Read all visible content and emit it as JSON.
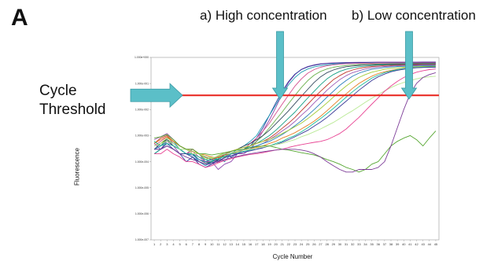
{
  "figure": {
    "panel_letter": "A",
    "annotation_high": "a) High concentration",
    "annotation_low": "b) Low concentration",
    "threshold_label_line1": "Cycle",
    "threshold_label_line2": "Threshold"
  },
  "colors": {
    "threshold_line": "#e8211a",
    "arrow": "#5bbfc8",
    "arrow_stroke": "#3a9aa3",
    "frame": "#999999"
  },
  "chart_data": {
    "type": "line",
    "xlabel": "Cycle Number",
    "ylabel": "Fluorescence",
    "x": [
      1,
      2,
      3,
      4,
      5,
      6,
      7,
      8,
      9,
      10,
      11,
      12,
      13,
      14,
      15,
      16,
      17,
      18,
      19,
      20,
      21,
      22,
      23,
      24,
      25,
      26,
      27,
      28,
      29,
      30,
      31,
      32,
      33,
      34,
      35,
      36,
      37,
      38,
      39,
      40,
      41,
      42,
      43,
      44,
      45
    ],
    "xlim": [
      0.5,
      45.5
    ],
    "y_scale": "log",
    "ylim": [
      1e-07,
      1.0
    ],
    "y_ticks": [
      {
        "value": 1.0,
        "label": "1.000e+000"
      },
      {
        "value": 0.1,
        "label": "1.000e-001"
      },
      {
        "value": 0.01,
        "label": "1.000e-002"
      },
      {
        "value": 0.001,
        "label": "1.000e-003"
      },
      {
        "value": 0.0001,
        "label": "1.000e-004"
      },
      {
        "value": 1e-05,
        "label": "1.000e-005"
      },
      {
        "value": 1e-06,
        "label": "1.000e-006"
      },
      {
        "value": 1e-07,
        "label": "1.000e-007"
      }
    ],
    "threshold": 0.035,
    "grid": false,
    "series": [
      {
        "color": "#8e44ad",
        "values": [
          0.0005,
          0.0003,
          0.0006,
          0.0004,
          0.0002,
          0.0002,
          0.0003,
          0.0002,
          0.0001,
          0.0001,
          5e-05,
          8e-05,
          0.0001,
          0.0002,
          0.0002,
          0.0003,
          0.0006,
          0.0015,
          0.004,
          0.012,
          0.04,
          0.11,
          0.22,
          0.35,
          0.45,
          0.52,
          0.57,
          0.6,
          0.62,
          0.63,
          0.64,
          0.645,
          0.65,
          0.65,
          0.655,
          0.66,
          0.66,
          0.66,
          0.66,
          0.665,
          0.665,
          0.665,
          0.67,
          0.67,
          0.67
        ]
      },
      {
        "color": "#2c3e9e",
        "values": [
          0.0002,
          0.0003,
          0.0005,
          0.0003,
          0.0002,
          0.0001,
          0.00015,
          8e-05,
          6e-05,
          8e-05,
          0.00012,
          0.0002,
          0.00015,
          0.0002,
          0.0003,
          0.0004,
          0.0008,
          0.002,
          0.006,
          0.018,
          0.05,
          0.12,
          0.23,
          0.34,
          0.43,
          0.5,
          0.55,
          0.58,
          0.6,
          0.61,
          0.62,
          0.62,
          0.63,
          0.63,
          0.63,
          0.64,
          0.64,
          0.64,
          0.64,
          0.64,
          0.645,
          0.645,
          0.65,
          0.65,
          0.65
        ]
      },
      {
        "color": "#1f9bb5",
        "values": [
          0.0003,
          0.0004,
          0.0008,
          0.0006,
          0.0003,
          0.0002,
          0.0002,
          0.0001,
          7e-05,
          0.0001,
          0.00015,
          0.0001,
          0.0002,
          0.0003,
          0.0004,
          0.0006,
          0.001,
          0.0025,
          0.006,
          0.015,
          0.04,
          0.09,
          0.17,
          0.27,
          0.36,
          0.43,
          0.48,
          0.52,
          0.55,
          0.57,
          0.58,
          0.59,
          0.6,
          0.6,
          0.61,
          0.61,
          0.61,
          0.62,
          0.62,
          0.62,
          0.62,
          0.62,
          0.62,
          0.62,
          0.62
        ]
      },
      {
        "color": "#d4508f",
        "values": [
          0.0004,
          0.0006,
          0.0009,
          0.0005,
          0.0003,
          0.0002,
          0.00025,
          0.00015,
          0.0001,
          0.00012,
          9e-05,
          0.00015,
          0.0002,
          0.0002,
          0.0003,
          0.0005,
          0.0008,
          0.0015,
          0.003,
          0.007,
          0.016,
          0.036,
          0.08,
          0.15,
          0.25,
          0.34,
          0.42,
          0.48,
          0.52,
          0.55,
          0.57,
          0.58,
          0.59,
          0.6,
          0.6,
          0.61,
          0.61,
          0.61,
          0.61,
          0.62,
          0.62,
          0.62,
          0.62,
          0.62,
          0.62
        ]
      },
      {
        "color": "#6ab04c",
        "values": [
          0.0006,
          0.0004,
          0.0007,
          0.0005,
          0.0003,
          0.0003,
          0.0002,
          0.0002,
          0.00012,
          0.00015,
          0.0001,
          0.00015,
          0.0002,
          0.00025,
          0.0003,
          0.0004,
          0.0006,
          0.001,
          0.002,
          0.004,
          0.008,
          0.017,
          0.035,
          0.07,
          0.13,
          0.21,
          0.29,
          0.36,
          0.42,
          0.46,
          0.49,
          0.51,
          0.53,
          0.54,
          0.55,
          0.56,
          0.56,
          0.57,
          0.57,
          0.57,
          0.58,
          0.58,
          0.58,
          0.58,
          0.58
        ]
      },
      {
        "color": "#34495e",
        "values": [
          0.0003,
          0.0005,
          0.0007,
          0.0004,
          0.0003,
          0.0002,
          0.0002,
          0.00012,
          9e-05,
          0.0001,
          0.00012,
          0.00018,
          0.00025,
          0.0003,
          0.0004,
          0.0005,
          0.0007,
          0.001,
          0.0016,
          0.0028,
          0.005,
          0.009,
          0.017,
          0.032,
          0.06,
          0.11,
          0.18,
          0.26,
          0.33,
          0.39,
          0.44,
          0.47,
          0.5,
          0.52,
          0.53,
          0.54,
          0.55,
          0.55,
          0.56,
          0.56,
          0.56,
          0.57,
          0.57,
          0.57,
          0.57
        ]
      },
      {
        "color": "#16a085",
        "values": [
          0.0002,
          0.0003,
          0.0004,
          0.0003,
          0.0002,
          0.0002,
          0.00015,
          0.0001,
          8e-05,
          0.0001,
          0.00013,
          0.00016,
          0.0002,
          0.00025,
          0.0003,
          0.0004,
          0.0005,
          0.0007,
          0.001,
          0.0016,
          0.0027,
          0.0047,
          0.008,
          0.015,
          0.028,
          0.05,
          0.09,
          0.15,
          0.22,
          0.29,
          0.35,
          0.4,
          0.44,
          0.47,
          0.49,
          0.51,
          0.52,
          0.53,
          0.53,
          0.54,
          0.54,
          0.54,
          0.55,
          0.55,
          0.55
        ]
      },
      {
        "color": "#c0392b",
        "values": [
          0.0005,
          0.0008,
          0.001,
          0.0006,
          0.0004,
          0.0003,
          0.0002,
          0.0002,
          0.00015,
          0.00012,
          0.00015,
          0.0002,
          0.00025,
          0.0003,
          0.00035,
          0.0004,
          0.0005,
          0.0006,
          0.0008,
          0.0012,
          0.0019,
          0.003,
          0.005,
          0.009,
          0.016,
          0.029,
          0.05,
          0.085,
          0.14,
          0.2,
          0.27,
          0.33,
          0.38,
          0.42,
          0.45,
          0.47,
          0.49,
          0.5,
          0.51,
          0.52,
          0.52,
          0.53,
          0.53,
          0.53,
          0.53
        ]
      },
      {
        "color": "#9b59b6",
        "values": [
          0.0007,
          0.0009,
          0.0012,
          0.0007,
          0.0004,
          0.0003,
          0.0003,
          0.0002,
          0.00015,
          0.00012,
          0.0001,
          0.00014,
          0.0002,
          0.0002,
          0.0003,
          0.0003,
          0.0004,
          0.0005,
          0.0007,
          0.001,
          0.0015,
          0.0022,
          0.0035,
          0.006,
          0.01,
          0.018,
          0.031,
          0.055,
          0.09,
          0.14,
          0.2,
          0.26,
          0.31,
          0.36,
          0.4,
          0.43,
          0.45,
          0.47,
          0.48,
          0.49,
          0.5,
          0.5,
          0.51,
          0.51,
          0.51
        ]
      },
      {
        "color": "#2980b9",
        "values": [
          0.0003,
          0.0004,
          0.0006,
          0.0005,
          0.0003,
          0.0002,
          0.00018,
          0.00012,
          0.0001,
          0.00013,
          0.00016,
          0.0002,
          0.00022,
          0.00025,
          0.0003,
          0.00035,
          0.0004,
          0.0005,
          0.0006,
          0.0008,
          0.0011,
          0.0016,
          0.0024,
          0.0037,
          0.006,
          0.01,
          0.017,
          0.03,
          0.05,
          0.085,
          0.13,
          0.19,
          0.25,
          0.3,
          0.35,
          0.38,
          0.41,
          0.43,
          0.45,
          0.46,
          0.47,
          0.47,
          0.48,
          0.48,
          0.48
        ]
      },
      {
        "color": "#a3cb38",
        "values": [
          0.0004,
          0.0005,
          0.0008,
          0.0006,
          0.0004,
          0.0003,
          0.00025,
          0.0002,
          0.00014,
          0.00013,
          0.00017,
          0.00022,
          0.00025,
          0.0003,
          0.00035,
          0.0004,
          0.0005,
          0.0006,
          0.0007,
          0.0009,
          0.0012,
          0.0016,
          0.0022,
          0.003,
          0.0045,
          0.007,
          0.011,
          0.018,
          0.03,
          0.05,
          0.08,
          0.12,
          0.17,
          0.22,
          0.27,
          0.31,
          0.35,
          0.38,
          0.4,
          0.42,
          0.43,
          0.44,
          0.45,
          0.45,
          0.46
        ]
      },
      {
        "color": "#e67e22",
        "values": [
          0.0005,
          0.0007,
          0.0009,
          0.0006,
          0.0004,
          0.0003,
          0.0003,
          0.0002,
          0.00018,
          0.00015,
          0.00014,
          0.00018,
          0.0002,
          0.00024,
          0.00028,
          0.0003,
          0.00035,
          0.0004,
          0.0005,
          0.0006,
          0.0008,
          0.001,
          0.0013,
          0.0018,
          0.0025,
          0.0036,
          0.0055,
          0.009,
          0.015,
          0.025,
          0.04,
          0.065,
          0.1,
          0.14,
          0.19,
          0.24,
          0.28,
          0.32,
          0.35,
          0.38,
          0.4,
          0.41,
          0.42,
          0.43,
          0.43
        ]
      },
      {
        "color": "#1abc9c",
        "values": [
          0.0006,
          0.0004,
          0.0005,
          0.0004,
          0.0003,
          0.0002,
          0.0002,
          0.00015,
          0.00012,
          0.00011,
          0.00013,
          0.00016,
          0.0002,
          0.00022,
          0.00025,
          0.00028,
          0.0003,
          0.00035,
          0.0004,
          0.0005,
          0.0006,
          0.0008,
          0.001,
          0.0014,
          0.002,
          0.003,
          0.0045,
          0.007,
          0.011,
          0.018,
          0.03,
          0.048,
          0.075,
          0.11,
          0.16,
          0.21,
          0.26,
          0.3,
          0.34,
          0.37,
          0.39,
          0.41,
          0.42,
          0.43,
          0.43
        ]
      },
      {
        "color": "#3b3b98",
        "values": [
          0.0003,
          0.0003,
          0.0004,
          0.0003,
          0.0002,
          0.0002,
          0.00015,
          0.0001,
          8e-05,
          9e-05,
          0.00011,
          0.00014,
          0.00017,
          0.0002,
          0.00023,
          0.00026,
          0.0003,
          0.00034,
          0.0004,
          0.00045,
          0.00055,
          0.0007,
          0.0009,
          0.0012,
          0.0016,
          0.0023,
          0.0033,
          0.005,
          0.008,
          0.013,
          0.021,
          0.034,
          0.055,
          0.085,
          0.13,
          0.18,
          0.23,
          0.28,
          0.32,
          0.35,
          0.38,
          0.4,
          0.41,
          0.42,
          0.42
        ]
      },
      {
        "color": "#b8e994",
        "values": [
          0.0004,
          0.0005,
          0.0006,
          0.0005,
          0.0003,
          0.0003,
          0.0002,
          0.0002,
          0.00016,
          0.00014,
          0.00016,
          0.0002,
          0.00022,
          0.00025,
          0.00028,
          0.0003,
          0.00033,
          0.00036,
          0.0004,
          0.00045,
          0.0005,
          0.0006,
          0.0007,
          0.0009,
          0.0011,
          0.0014,
          0.0018,
          0.0024,
          0.0032,
          0.0045,
          0.0065,
          0.009,
          0.013,
          0.019,
          0.027,
          0.038,
          0.052,
          0.07,
          0.09,
          0.11,
          0.13,
          0.15,
          0.17,
          0.18,
          0.19
        ]
      },
      {
        "color": "#55a630",
        "values": [
          0.0008,
          0.0009,
          0.0011,
          0.0007,
          0.0004,
          0.0003,
          0.0003,
          0.0002,
          0.0002,
          0.00018,
          0.0002,
          0.00022,
          0.00025,
          0.00028,
          0.0003,
          0.00034,
          0.00038,
          0.0004,
          0.0004,
          0.00035,
          0.0003,
          0.00028,
          0.00025,
          0.00022,
          0.0002,
          0.00018,
          0.00015,
          0.00012,
          0.0001,
          8e-05,
          6e-05,
          5e-05,
          4e-05,
          5e-05,
          8e-05,
          0.0001,
          0.0002,
          0.0004,
          0.0006,
          0.0008,
          0.001,
          0.0007,
          0.0004,
          0.0008,
          0.0015
        ]
      },
      {
        "color": "#e84393",
        "values": [
          0.0002,
          0.0002,
          0.0003,
          0.0002,
          0.00015,
          0.0001,
          0.0001,
          8e-05,
          6e-05,
          7e-05,
          9e-05,
          0.00011,
          0.00013,
          0.00015,
          0.00017,
          0.00019,
          0.0002,
          0.00022,
          0.00025,
          0.00028,
          0.0003,
          0.00035,
          0.0004,
          0.00045,
          0.0005,
          0.00055,
          0.0006,
          0.0007,
          0.0009,
          0.0012,
          0.0018,
          0.003,
          0.005,
          0.009,
          0.016,
          0.028,
          0.05,
          0.08,
          0.12,
          0.17,
          0.22,
          0.27,
          0.31,
          0.34,
          0.36
        ]
      },
      {
        "color": "#7d3c98",
        "values": [
          0.0003,
          0.0003,
          0.0004,
          0.0003,
          0.0002,
          0.00015,
          0.00012,
          0.0001,
          8e-05,
          8e-05,
          0.0001,
          0.00012,
          0.00014,
          0.00016,
          0.00018,
          0.0002,
          0.00022,
          0.00024,
          0.00026,
          0.00028,
          0.0003,
          0.0003,
          0.0003,
          0.00028,
          0.00025,
          0.0002,
          0.00015,
          0.0001,
          7e-05,
          5e-05,
          4e-05,
          4e-05,
          5e-05,
          5e-05,
          5e-05,
          6e-05,
          0.0001,
          0.0004,
          0.002,
          0.01,
          0.04,
          0.1,
          0.17,
          0.22,
          0.26
        ]
      }
    ]
  }
}
